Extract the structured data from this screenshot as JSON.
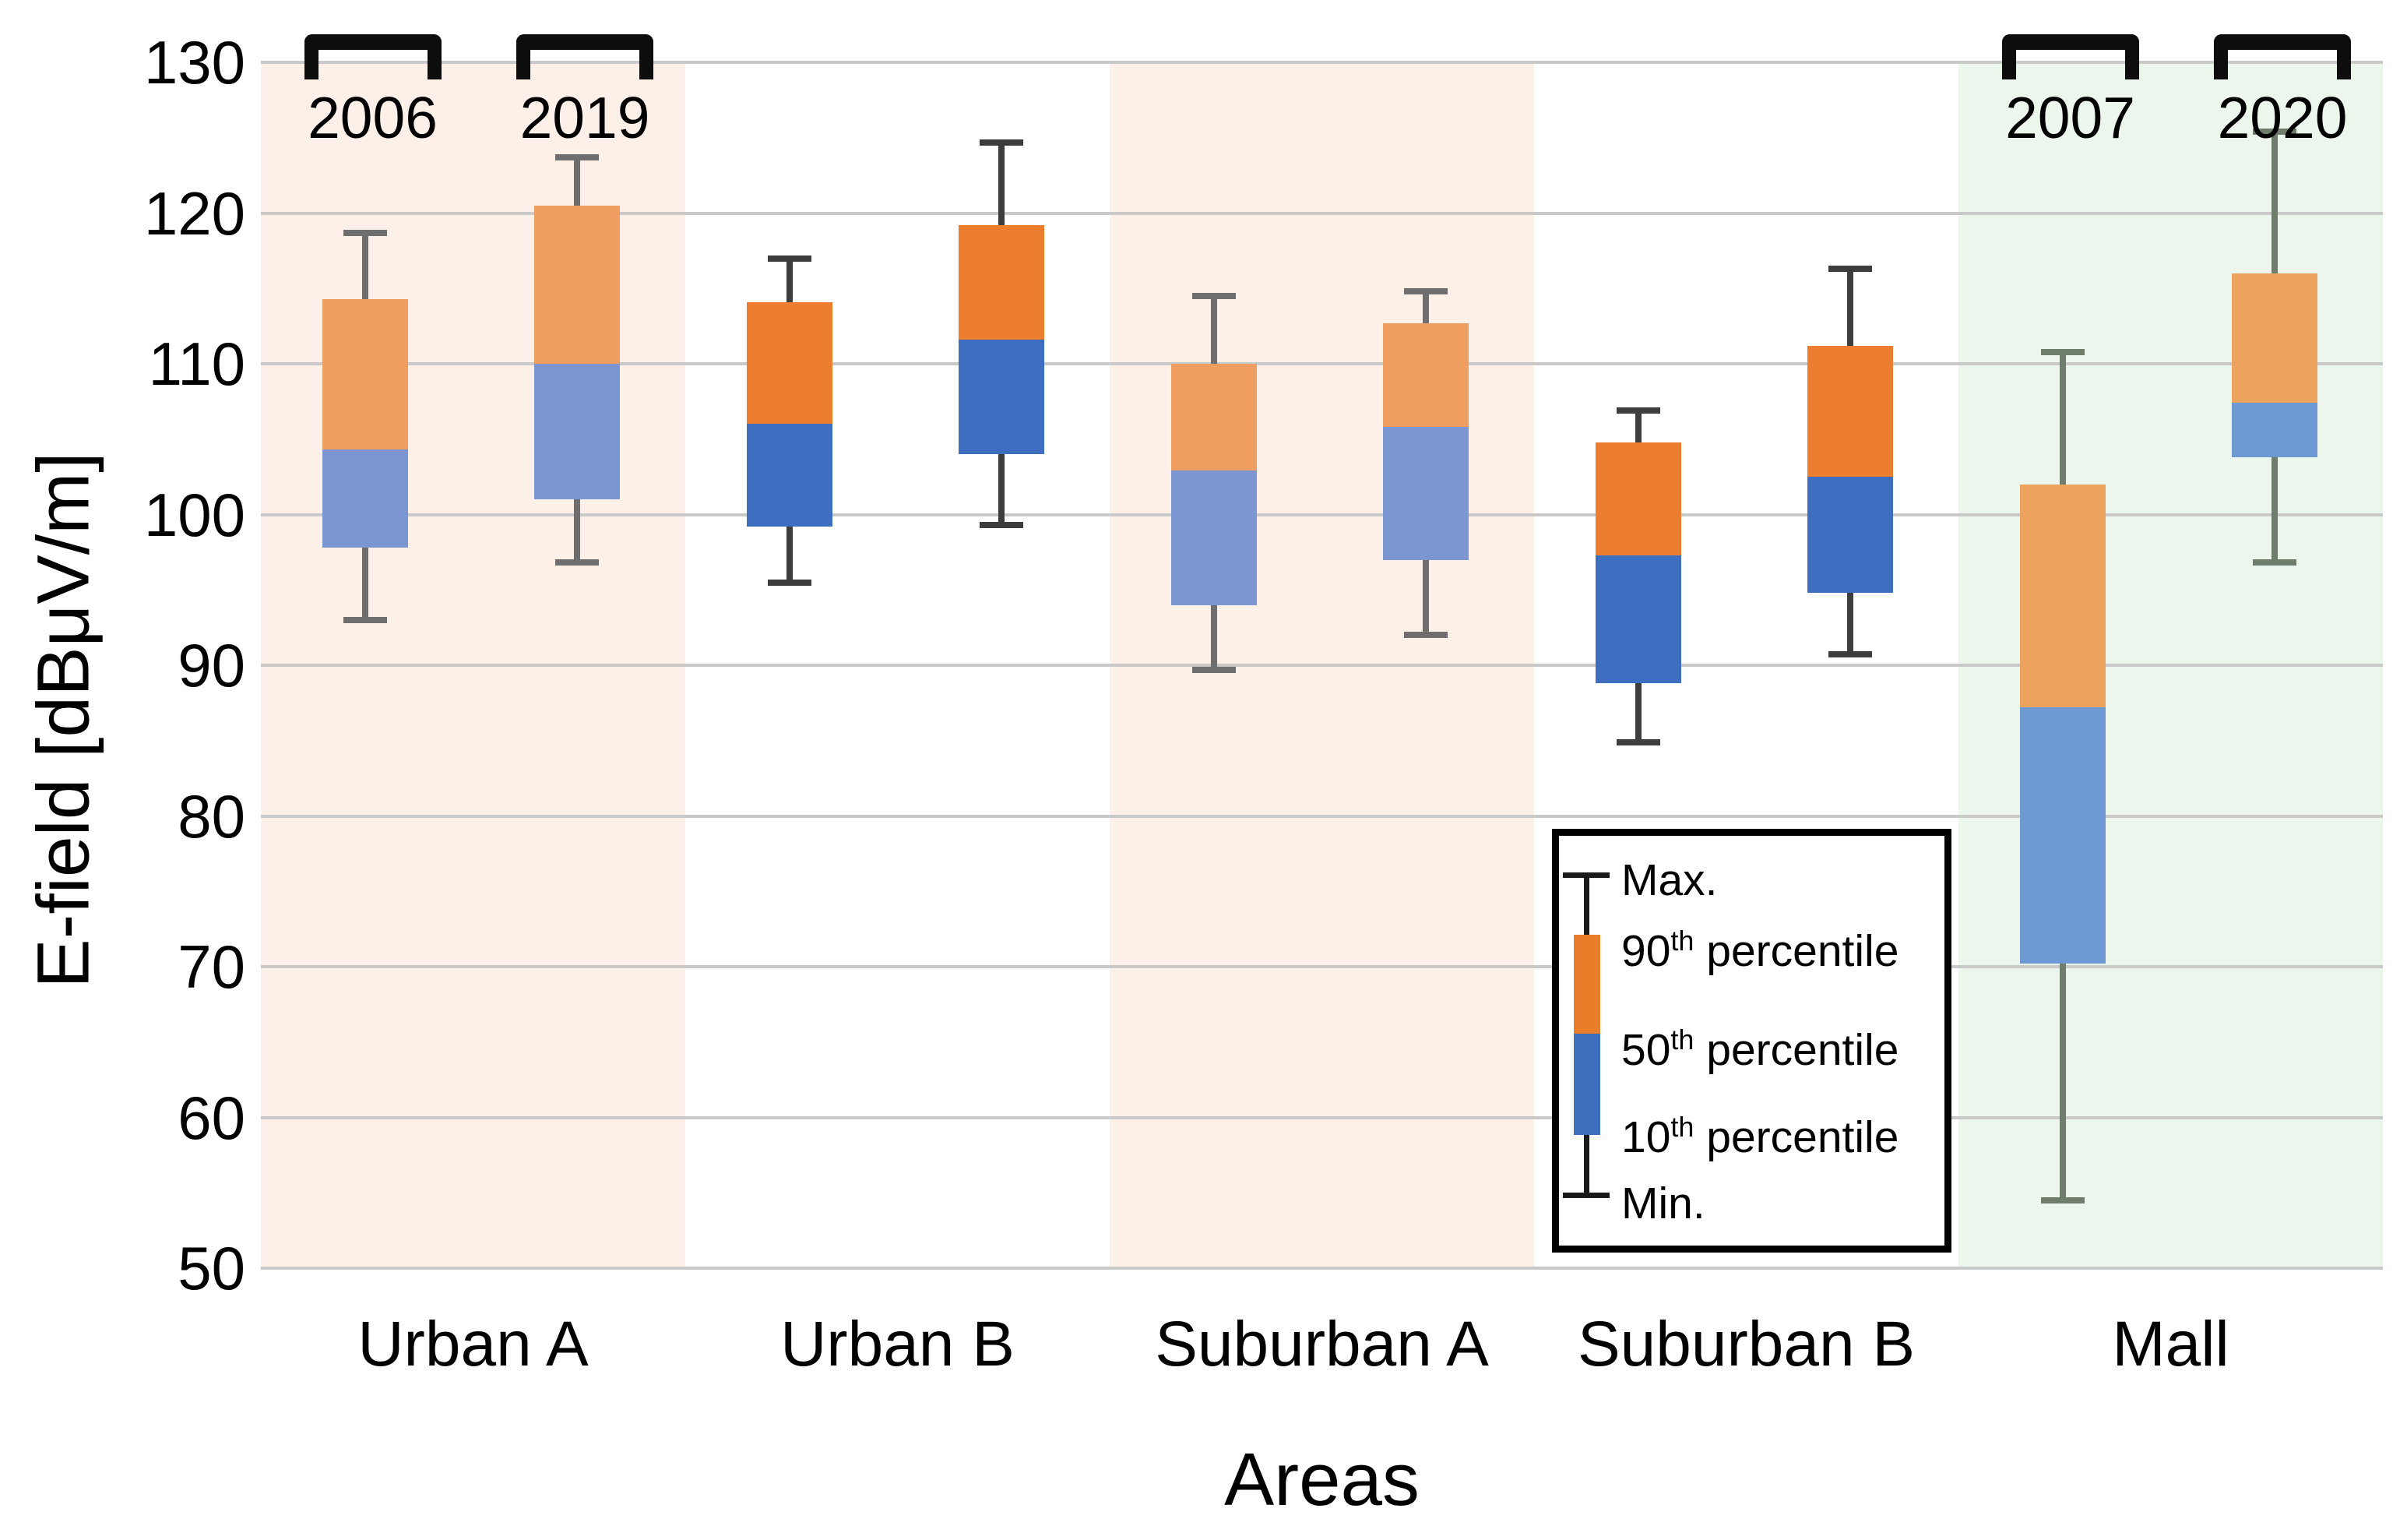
{
  "axes": {
    "y": {
      "label": "E-field [dBμV/m]",
      "ticks": [
        130,
        120,
        110,
        100,
        90,
        80,
        70,
        60,
        50
      ],
      "min": 50,
      "max": 130,
      "gridline_color": "#c9c9c9"
    },
    "x": {
      "label": "Areas",
      "categories": [
        "Urban A",
        "Urban B",
        "Suburban A",
        "Suburban B",
        "Mall"
      ]
    }
  },
  "annotations": {
    "year_brackets": [
      {
        "label": "2006",
        "area_index": 0,
        "box_index": 0
      },
      {
        "label": "2019",
        "area_index": 0,
        "box_index": 1
      },
      {
        "label": "2007",
        "area_index": 4,
        "box_index": 0
      },
      {
        "label": "2020",
        "area_index": 4,
        "box_index": 1
      }
    ],
    "bracket_color": "#0d0d0d"
  },
  "legend": {
    "items": [
      "Max.",
      "90th percentile",
      "50th percentile",
      "10th percentile",
      "Min."
    ],
    "glyph": {
      "orange": "#e87d2a",
      "blue": "#3d6fbf",
      "whisker": "#1a1a1a"
    }
  },
  "colors": {
    "light_orange": "#f09d61",
    "light_blue": "#7b96d0",
    "dark_orange": "#ed7d2f",
    "dark_blue": "#3d6ec0",
    "mall_orange": "#eca35e",
    "mall_blue": "#6e99d3",
    "pink_band": "#fdf0e9",
    "green_band": "#edf6ec"
  },
  "chart_data": {
    "type": "box",
    "unit": "dBμV/m",
    "ylim": [
      50,
      130
    ],
    "grid_step": 10,
    "legend_position": "lower-right-inside",
    "areas": [
      {
        "name": "Urban A",
        "background": "#fdf0e9",
        "boxes": [
          {
            "year": "2006",
            "min": 93.0,
            "p10": 97.8,
            "p50": 104.3,
            "p90": 114.3,
            "max": 118.7,
            "orange": "#f09d61",
            "blue": "#7b96d0",
            "whisker": "#6e6e6e"
          },
          {
            "year": "2019",
            "min": 96.8,
            "p10": 101.0,
            "p50": 110.0,
            "p90": 120.5,
            "max": 123.7,
            "orange": "#f09d61",
            "blue": "#7b96d0",
            "whisker": "#6e6e6e"
          }
        ]
      },
      {
        "name": "Urban B",
        "background": "",
        "boxes": [
          {
            "year": "",
            "min": 95.5,
            "p10": 99.2,
            "p50": 106.0,
            "p90": 114.1,
            "max": 117.0,
            "orange": "#ed7d2f",
            "blue": "#3d6ec0",
            "whisker": "#3d3d3d"
          },
          {
            "year": "",
            "min": 99.3,
            "p10": 104.0,
            "p50": 111.6,
            "p90": 119.2,
            "max": 124.7,
            "orange": "#ed7d2f",
            "blue": "#3d6ec0",
            "whisker": "#3d3d3d"
          }
        ]
      },
      {
        "name": "Suburban A",
        "background": "#fdf0e9",
        "boxes": [
          {
            "year": "",
            "min": 89.7,
            "p10": 94.0,
            "p50": 102.9,
            "p90": 110.0,
            "max": 114.5,
            "orange": "#f09d61",
            "blue": "#7b96d0",
            "whisker": "#6e6e6e"
          },
          {
            "year": "",
            "min": 92.0,
            "p10": 97.0,
            "p50": 105.8,
            "p90": 112.7,
            "max": 114.8,
            "orange": "#f09d61",
            "blue": "#7b96d0",
            "whisker": "#6e6e6e"
          }
        ]
      },
      {
        "name": "Suburban B",
        "background": "",
        "boxes": [
          {
            "year": "",
            "min": 84.9,
            "p10": 88.8,
            "p50": 97.3,
            "p90": 104.8,
            "max": 106.9,
            "orange": "#ed7d2f",
            "blue": "#3d6ec0",
            "whisker": "#3d3d3d"
          },
          {
            "year": "",
            "min": 90.7,
            "p10": 94.8,
            "p50": 102.5,
            "p90": 111.2,
            "max": 116.3,
            "orange": "#ed7d2f",
            "blue": "#3d6ec0",
            "whisker": "#3d3d3d"
          }
        ]
      },
      {
        "name": "Mall",
        "background": "#edf6ec",
        "boxes": [
          {
            "year": "2007",
            "min": 54.5,
            "p10": 70.2,
            "p50": 87.2,
            "p90": 102.0,
            "max": 110.8,
            "orange": "#eca35e",
            "blue": "#6e99d3",
            "whisker": "#6f7d6d"
          },
          {
            "year": "2020",
            "min": 96.8,
            "p10": 103.8,
            "p50": 107.4,
            "p90": 116.0,
            "max": 125.4,
            "orange": "#eca35e",
            "blue": "#6e99d3",
            "whisker": "#6f7d6d"
          }
        ]
      }
    ]
  }
}
